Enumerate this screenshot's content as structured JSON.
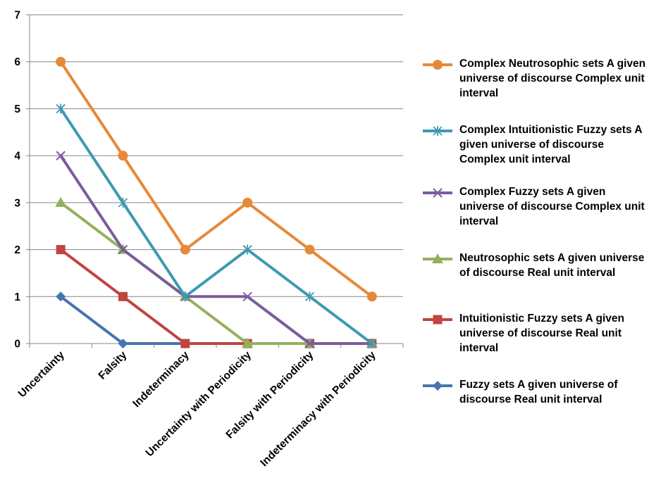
{
  "chart_data": {
    "type": "line",
    "categories": [
      "Uncertainty",
      "Falsity",
      "Indeterminacy",
      "Uncertainty with Periodicity",
      "Falsity with Periodicity",
      "Indeterminacy with Periodicity"
    ],
    "ylim": [
      0,
      7
    ],
    "yticks": [
      "0",
      "1",
      "2",
      "3",
      "4",
      "5",
      "6",
      "7"
    ],
    "grid": true,
    "legend_position": "right",
    "series": [
      {
        "name": "Complex Neutrosophic sets A given universe of discourse Complex unit interval",
        "values": [
          6,
          4,
          2,
          3,
          2,
          1
        ],
        "color": "#E6893A",
        "marker": "circle"
      },
      {
        "name": "Complex Intuitionistic Fuzzy sets A given universe of discourse Complex unit interval",
        "values": [
          5,
          3,
          1,
          2,
          1,
          0
        ],
        "color": "#3E9AB0",
        "marker": "star"
      },
      {
        "name": "Complex Fuzzy sets A given universe of discourse Complex unit interval",
        "values": [
          4,
          2,
          1,
          1,
          0,
          0
        ],
        "color": "#7A5C9E",
        "marker": "x"
      },
      {
        "name": "Neutrosophic sets A given universe of discourse Real unit interval",
        "values": [
          3,
          2,
          1,
          0,
          0,
          0
        ],
        "color": "#93B15A",
        "marker": "triangle"
      },
      {
        "name": "Intuitionistic Fuzzy sets A given universe of discourse Real unit interval",
        "values": [
          2,
          1,
          0,
          0,
          0,
          0
        ],
        "color": "#C0443F",
        "marker": "square"
      },
      {
        "name": "Fuzzy sets A given universe of discourse Real unit interval",
        "values": [
          1,
          0,
          0,
          0,
          0,
          0
        ],
        "color": "#4674B0",
        "marker": "diamond"
      }
    ]
  }
}
